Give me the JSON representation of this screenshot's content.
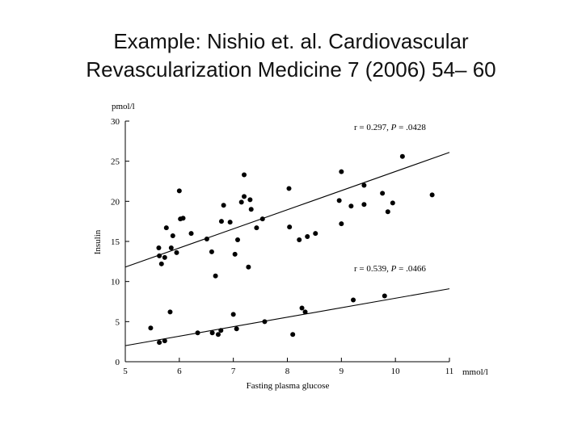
{
  "slide": {
    "title_line1": "Example: Nishio et. al. Cardiovascular",
    "title_line2": "Revascularization Medicine 7 (2006) 54– 60"
  },
  "chart_data": {
    "type": "scatter",
    "xlabel": "Fasting plasma glucose",
    "ylabel": "Insulin",
    "x_unit": "mmol/l",
    "y_unit": "pmol/l",
    "xlim": [
      5,
      11
    ],
    "ylim": [
      0,
      30
    ],
    "x_ticks": [
      5,
      6,
      7,
      8,
      9,
      10,
      11
    ],
    "y_ticks": [
      0,
      5,
      10,
      15,
      20,
      25,
      30
    ],
    "grid": false,
    "series": [
      {
        "annotation_r": "r = 0.297, ",
        "annotation_p": "P",
        "annotation_pval": " = .0428",
        "fit_line": {
          "x": [
            5,
            11
          ],
          "y": [
            11.8,
            26.1
          ]
        },
        "points": [
          [
            5.62,
            14.2
          ],
          [
            5.63,
            13.2
          ],
          [
            5.67,
            12.2
          ],
          [
            5.73,
            13.0
          ],
          [
            5.76,
            16.7
          ],
          [
            5.85,
            14.2
          ],
          [
            5.88,
            15.7
          ],
          [
            5.95,
            13.6
          ],
          [
            6.0,
            21.3
          ],
          [
            6.02,
            17.8
          ],
          [
            6.07,
            17.9
          ],
          [
            6.22,
            16.0
          ],
          [
            6.51,
            15.3
          ],
          [
            6.6,
            13.7
          ],
          [
            6.67,
            10.7
          ],
          [
            6.78,
            17.5
          ],
          [
            6.82,
            19.5
          ],
          [
            6.94,
            17.4
          ],
          [
            7.03,
            13.4
          ],
          [
            7.08,
            15.2
          ],
          [
            7.15,
            19.9
          ],
          [
            7.2,
            23.3
          ],
          [
            7.2,
            20.6
          ],
          [
            7.28,
            11.8
          ],
          [
            7.31,
            20.2
          ],
          [
            7.33,
            19.0
          ],
          [
            7.43,
            16.7
          ],
          [
            7.54,
            17.8
          ],
          [
            8.03,
            21.6
          ],
          [
            8.04,
            16.8
          ],
          [
            8.22,
            15.2
          ],
          [
            8.37,
            15.6
          ],
          [
            8.52,
            16.0
          ],
          [
            8.96,
            20.1
          ],
          [
            9.0,
            23.7
          ],
          [
            9.0,
            17.2
          ],
          [
            9.18,
            19.4
          ],
          [
            9.42,
            22.0
          ],
          [
            9.42,
            19.6
          ],
          [
            9.76,
            21.0
          ],
          [
            9.86,
            18.7
          ],
          [
            9.95,
            19.8
          ],
          [
            10.13,
            25.6
          ],
          [
            10.68,
            20.8
          ]
        ]
      },
      {
        "annotation_r": "r = 0.539, ",
        "annotation_p": "P",
        "annotation_pval": " = .0466",
        "fit_line": {
          "x": [
            5,
            11
          ],
          "y": [
            2.0,
            9.1
          ]
        },
        "points": [
          [
            5.47,
            4.2
          ],
          [
            5.63,
            2.4
          ],
          [
            5.73,
            2.6
          ],
          [
            5.83,
            6.2
          ],
          [
            6.34,
            3.6
          ],
          [
            6.61,
            3.6
          ],
          [
            6.72,
            3.4
          ],
          [
            6.77,
            3.9
          ],
          [
            7.0,
            5.9
          ],
          [
            7.06,
            4.1
          ],
          [
            7.58,
            5.0
          ],
          [
            8.1,
            3.4
          ],
          [
            8.27,
            6.7
          ],
          [
            8.33,
            6.2
          ],
          [
            9.22,
            7.7
          ],
          [
            9.8,
            8.2
          ]
        ]
      }
    ]
  }
}
